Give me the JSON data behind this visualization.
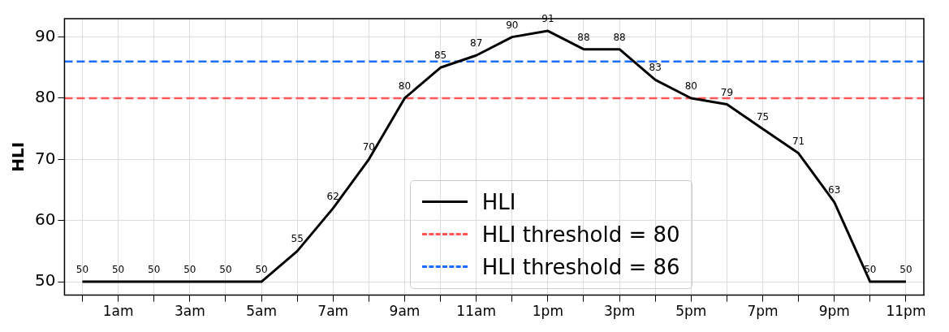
{
  "chart_data": {
    "type": "line",
    "ylabel": "HLI",
    "categories": [
      null,
      "1am",
      null,
      "3am",
      null,
      "5am",
      null,
      "7am",
      null,
      "9am",
      null,
      "11am",
      null,
      "1pm",
      null,
      "3pm",
      null,
      "5pm",
      null,
      "7pm",
      null,
      "9pm",
      null,
      "11pm"
    ],
    "series": [
      {
        "name": "HLI",
        "color": "#000000",
        "values": [
          50,
          50,
          50,
          50,
          50,
          50,
          55,
          62,
          70,
          80,
          85,
          87,
          90,
          91,
          88,
          88,
          83,
          80,
          79,
          75,
          71,
          63,
          50,
          50
        ]
      }
    ],
    "ref_lines": [
      {
        "axis": "y",
        "value": 80,
        "label": "HLI threshold = 80",
        "color": "#ff5555",
        "line_style": "dashed"
      },
      {
        "axis": "y",
        "value": 86,
        "label": "HLI threshold = 86",
        "color": "#1a6fff",
        "line_style": "dashed"
      }
    ],
    "ylim": [
      47.8,
      93
    ],
    "yticks": [
      50,
      60,
      70,
      80,
      90
    ],
    "grid": true,
    "legend": "bottom",
    "data_labels": true,
    "marker": "none",
    "line_style": "solid"
  }
}
